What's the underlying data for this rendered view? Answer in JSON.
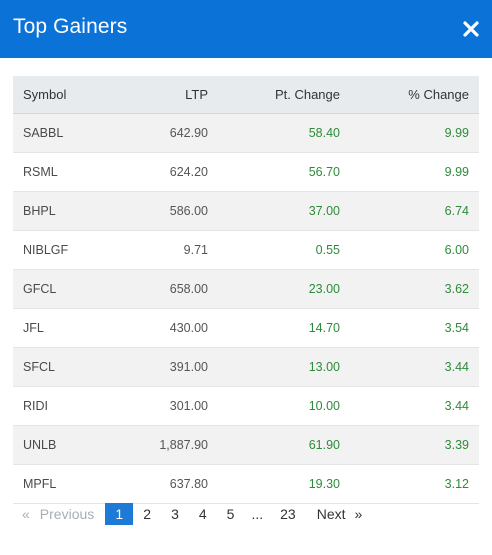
{
  "modal": {
    "title": "Top Gainers",
    "close_symbol": "×",
    "colors": {
      "header": "#0b73d8",
      "positive": "#2e8b3a",
      "active_page": "#1d7ad6"
    }
  },
  "table": {
    "headers": {
      "symbol": "Symbol",
      "ltp": "LTP",
      "pt_change": "Pt. Change",
      "pct_change": "% Change"
    },
    "rows": [
      {
        "symbol": "SABBL",
        "ltp": "642.90",
        "pt_change": "58.40",
        "pct_change": "9.99"
      },
      {
        "symbol": "RSML",
        "ltp": "624.20",
        "pt_change": "56.70",
        "pct_change": "9.99"
      },
      {
        "symbol": "BHPL",
        "ltp": "586.00",
        "pt_change": "37.00",
        "pct_change": "6.74"
      },
      {
        "symbol": "NIBLGF",
        "ltp": "9.71",
        "pt_change": "0.55",
        "pct_change": "6.00"
      },
      {
        "symbol": "GFCL",
        "ltp": "658.00",
        "pt_change": "23.00",
        "pct_change": "3.62"
      },
      {
        "symbol": "JFL",
        "ltp": "430.00",
        "pt_change": "14.70",
        "pct_change": "3.54"
      },
      {
        "symbol": "SFCL",
        "ltp": "391.00",
        "pt_change": "13.00",
        "pct_change": "3.44"
      },
      {
        "symbol": "RIDI",
        "ltp": "301.00",
        "pt_change": "10.00",
        "pct_change": "3.44"
      },
      {
        "symbol": "UNLB",
        "ltp": "1,887.90",
        "pt_change": "61.90",
        "pct_change": "3.39"
      },
      {
        "symbol": "MPFL",
        "ltp": "637.80",
        "pt_change": "19.30",
        "pct_change": "3.12"
      }
    ]
  },
  "pagination": {
    "prev_arrow": "«",
    "prev_label": "Previous",
    "pages": [
      "1",
      "2",
      "3",
      "4",
      "5"
    ],
    "ellipsis": "...",
    "last_page": "23",
    "next_label": "Next",
    "next_arrow": "»",
    "current": "1"
  }
}
